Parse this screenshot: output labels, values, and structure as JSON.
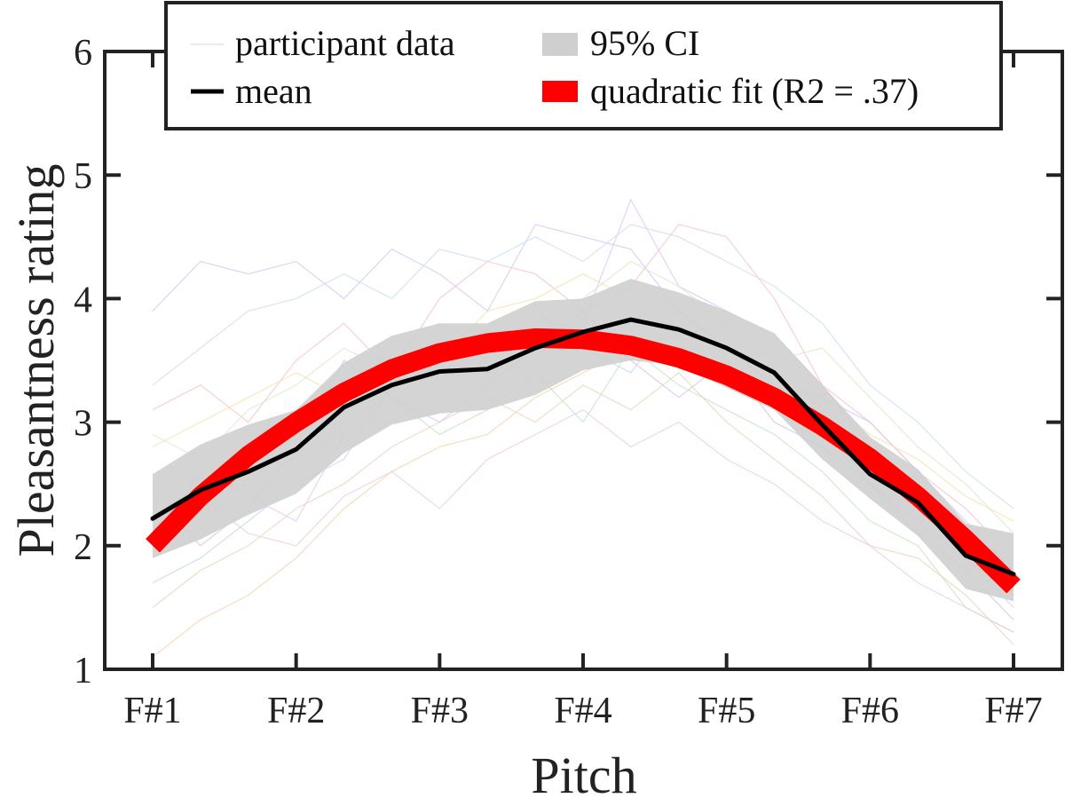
{
  "chart_data": {
    "type": "line",
    "xlabel": "Pitch",
    "ylabel": "Pleasantness rating",
    "categories": [
      "F#1",
      "F#2",
      "F#3",
      "F#4",
      "F#5",
      "F#6",
      "F#7"
    ],
    "xlim": [
      0,
      6
    ],
    "ylim": [
      1,
      6
    ],
    "yticks": [
      "1",
      "2",
      "3",
      "4",
      "5",
      "6"
    ],
    "grid": false,
    "legend_position": "top",
    "legend": {
      "participant": "participant data",
      "ci": "95% CI",
      "mean": "mean",
      "fit": "quadratic fit (R2 = .37)"
    },
    "colors": {
      "mean": "#000000",
      "fit": "#ff0000",
      "ci": "#cfcfcf",
      "axis": "#222222"
    },
    "x": [
      0,
      0.333,
      0.667,
      1,
      1.333,
      1.667,
      2,
      2.333,
      2.667,
      3,
      3.333,
      3.667,
      4,
      4.333,
      4.667,
      5,
      5.333,
      5.667,
      6
    ],
    "series": [
      {
        "name": "mean",
        "values": [
          2.22,
          2.45,
          2.6,
          2.78,
          3.12,
          3.3,
          3.41,
          3.43,
          3.6,
          3.73,
          3.83,
          3.75,
          3.6,
          3.4,
          2.98,
          2.58,
          2.35,
          1.92,
          1.77
        ]
      },
      {
        "name": "95% CI",
        "lower": [
          1.9,
          2.05,
          2.25,
          2.42,
          2.75,
          2.98,
          3.07,
          3.1,
          3.22,
          3.42,
          3.5,
          3.46,
          3.28,
          3.1,
          2.7,
          2.38,
          2.08,
          1.65,
          1.55
        ],
        "upper": [
          2.58,
          2.82,
          2.98,
          3.1,
          3.48,
          3.7,
          3.8,
          3.8,
          3.98,
          4.0,
          4.16,
          4.05,
          3.9,
          3.72,
          3.3,
          2.88,
          2.62,
          2.18,
          2.1
        ]
      },
      {
        "name": "quadratic fit (R2 = .37)",
        "values": [
          2.0,
          2.4,
          2.73,
          3.0,
          3.24,
          3.43,
          3.56,
          3.64,
          3.68,
          3.67,
          3.62,
          3.52,
          3.38,
          3.2,
          2.97,
          2.71,
          2.4,
          2.05,
          1.67
        ]
      }
    ],
    "participant_series": [
      [
        3.9,
        4.3,
        4.2,
        4.3,
        4.0,
        4.4,
        4.2,
        3.9,
        4.6,
        4.5,
        4.4,
        3.9,
        3.6,
        3.3,
        3.2,
        3.0,
        2.6,
        2.2,
        1.8
      ],
      [
        1.1,
        1.4,
        1.6,
        1.9,
        2.3,
        2.6,
        2.8,
        2.9,
        3.2,
        3.4,
        3.6,
        3.7,
        3.8,
        3.5,
        3.1,
        2.7,
        2.5,
        2.0,
        1.6
      ],
      [
        3.1,
        3.3,
        3.0,
        3.5,
        3.8,
        3.4,
        4.0,
        4.3,
        4.2,
        3.9,
        4.1,
        4.6,
        4.5,
        4.0,
        3.3,
        3.0,
        2.6,
        2.3,
        1.9
      ],
      [
        2.5,
        2.2,
        2.8,
        2.6,
        3.0,
        3.2,
        2.9,
        3.1,
        3.4,
        3.0,
        3.6,
        3.3,
        3.1,
        2.9,
        2.6,
        2.2,
        2.0,
        1.5,
        1.3
      ],
      [
        2.0,
        2.6,
        2.4,
        2.2,
        2.9,
        3.1,
        3.3,
        3.6,
        3.3,
        3.8,
        4.8,
        4.1,
        3.9,
        3.7,
        3.3,
        2.8,
        2.4,
        2.0,
        1.8
      ],
      [
        1.7,
        1.9,
        2.2,
        2.5,
        2.7,
        3.3,
        3.7,
        3.5,
        3.9,
        3.6,
        3.4,
        3.9,
        3.6,
        3.3,
        3.0,
        2.5,
        2.2,
        1.9,
        1.5
      ],
      [
        2.8,
        3.0,
        3.2,
        3.4,
        3.2,
        3.7,
        3.5,
        3.9,
        4.0,
        4.2,
        4.0,
        3.7,
        3.4,
        3.6,
        3.2,
        2.9,
        2.7,
        2.4,
        2.2
      ],
      [
        2.4,
        2.0,
        2.3,
        2.8,
        3.5,
        3.2,
        3.0,
        3.3,
        3.6,
        3.9,
        3.5,
        3.2,
        3.5,
        3.0,
        2.8,
        2.5,
        2.1,
        1.8,
        1.4
      ],
      [
        1.5,
        1.8,
        2.0,
        2.3,
        2.5,
        2.8,
        3.0,
        3.2,
        3.0,
        3.3,
        3.1,
        3.4,
        3.0,
        2.7,
        2.4,
        2.0,
        1.9,
        1.6,
        1.2
      ],
      [
        3.3,
        3.6,
        3.9,
        4.0,
        4.2,
        4.0,
        4.4,
        4.3,
        4.5,
        4.3,
        4.6,
        4.5,
        4.3,
        4.1,
        3.8,
        3.3,
        3.0,
        2.6,
        2.3
      ],
      [
        2.2,
        2.4,
        2.1,
        2.0,
        2.4,
        2.6,
        2.3,
        2.7,
        2.9,
        3.1,
        2.8,
        3.0,
        2.7,
        2.5,
        2.2,
        2.0,
        1.7,
        1.5,
        1.3
      ],
      [
        2.9,
        2.7,
        3.1,
        3.3,
        3.6,
        3.4,
        3.8,
        3.6,
        3.8,
        4.0,
        4.3,
        4.1,
        3.8,
        3.5,
        3.6,
        3.2,
        2.8,
        2.5,
        2.1
      ]
    ]
  }
}
